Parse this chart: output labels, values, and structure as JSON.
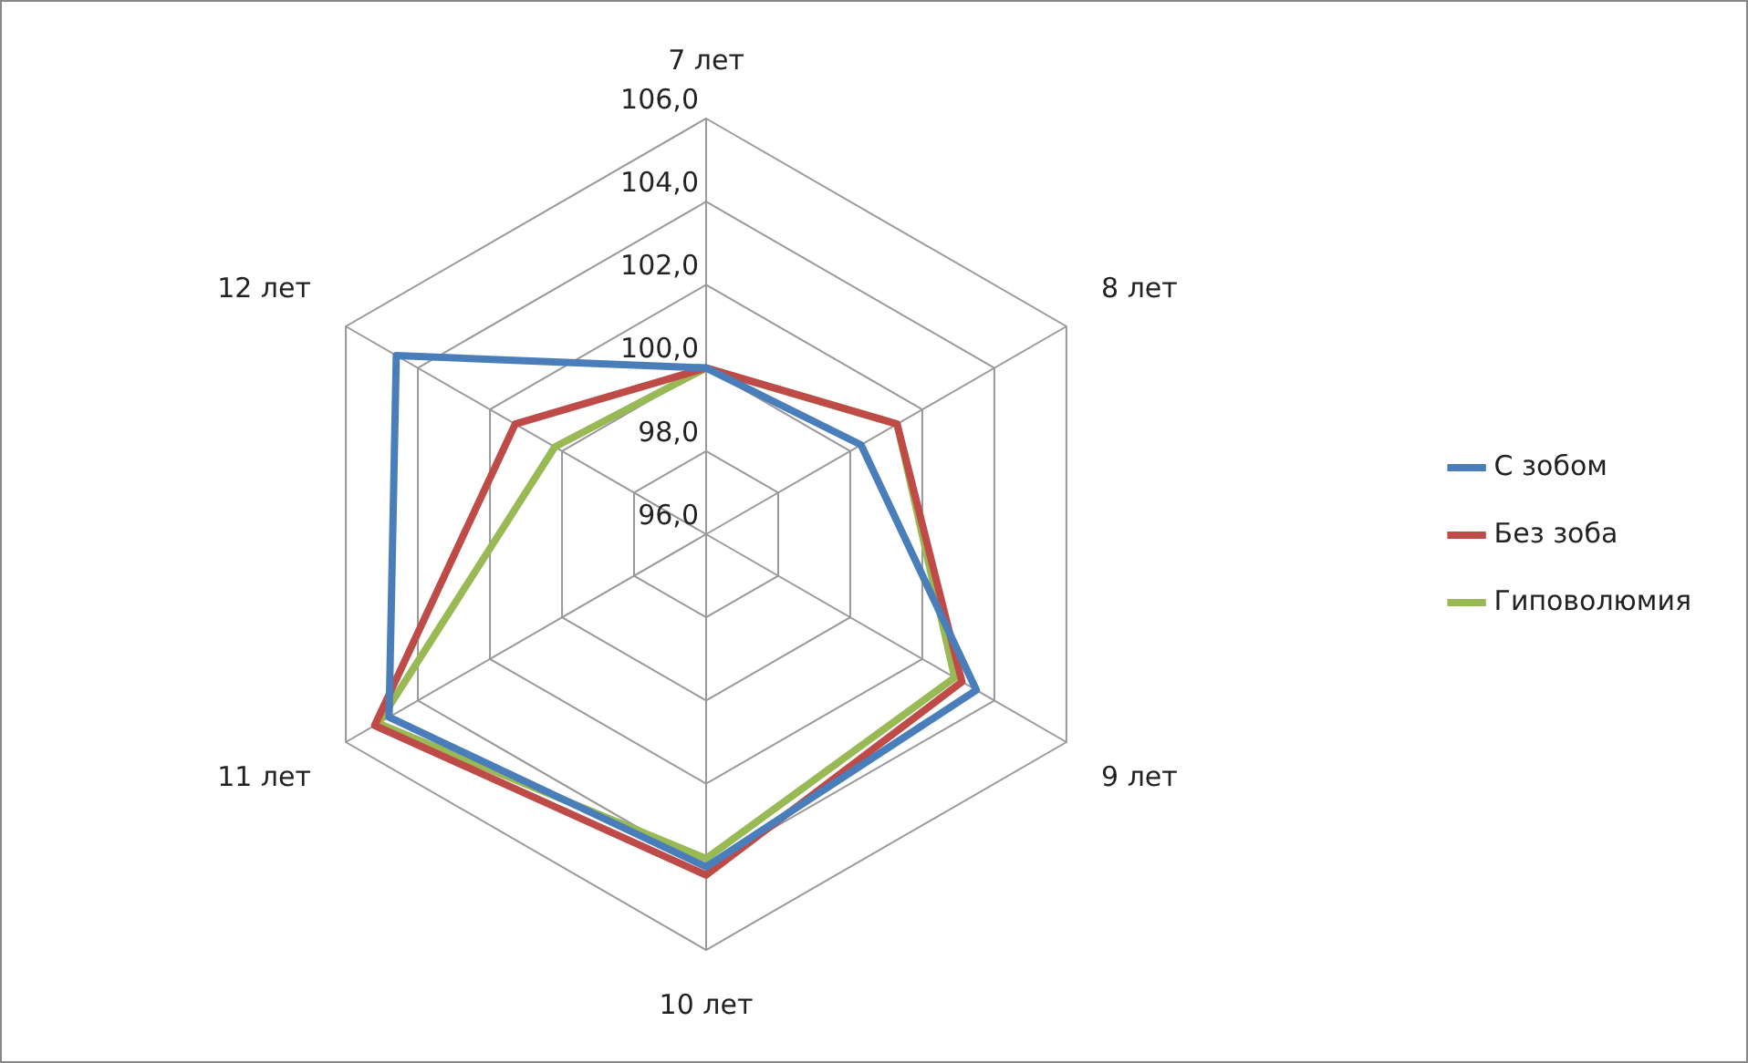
{
  "chart_data": {
    "type": "radar",
    "categories": [
      "7 лет",
      "8 лет",
      "9 лет",
      "10 лет",
      "11 лет",
      "12 лет"
    ],
    "series": [
      {
        "name": "С зобом",
        "color": "#4a7ebb",
        "values": [
          100.0,
          100.3,
          103.5,
          104.0,
          104.8,
          104.6
        ]
      },
      {
        "name": "Без зоба",
        "color": "#be4b48",
        "values": [
          100.0,
          101.3,
          103.1,
          104.2,
          105.2,
          101.3
        ]
      },
      {
        "name": "Гиповолюмия",
        "color": "#98b954",
        "values": [
          100.0,
          101.3,
          102.9,
          103.8,
          105.1,
          100.2
        ]
      }
    ],
    "ylim": [
      96,
      106
    ],
    "yticks": [
      {
        "value": 96,
        "label": "96,0"
      },
      {
        "value": 98,
        "label": "98,0"
      },
      {
        "value": 100,
        "label": "100,0"
      },
      {
        "value": 102,
        "label": "102,0"
      },
      {
        "value": 104,
        "label": "104,0"
      },
      {
        "value": 106,
        "label": "106,0"
      }
    ],
    "grid": true,
    "legend": "right",
    "marker": "none",
    "line_style": "solid"
  }
}
